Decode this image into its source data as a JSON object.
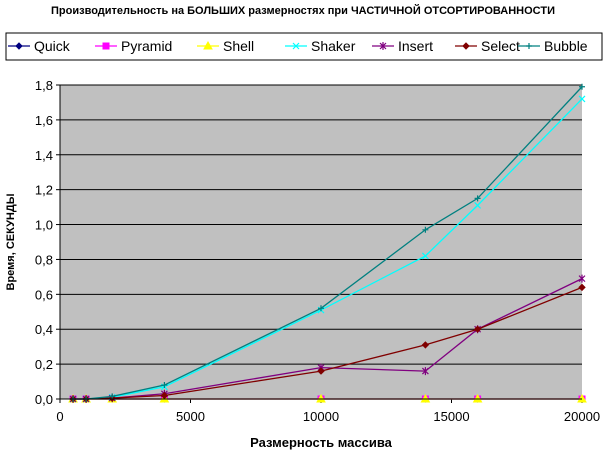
{
  "chart_data": {
    "type": "line",
    "title": "Производительность на БОЛЬШИХ размерностях при ЧАСТИЧНОЙ ОТСОРТИРОВАННОСТИ",
    "xlabel": "Размерность массива",
    "ylabel": "Время, СЕКУНДЫ",
    "xlim": [
      0,
      20000
    ],
    "ylim": [
      0,
      1.8
    ],
    "x_ticks": [
      0,
      5000,
      10000,
      15000,
      20000
    ],
    "x_tick_labels": [
      "0",
      "5000",
      "10000",
      "15000",
      "20000"
    ],
    "y_ticks": [
      0,
      0.2,
      0.4,
      0.6,
      0.8,
      1.0,
      1.2,
      1.4,
      1.6,
      1.8
    ],
    "y_tick_labels": [
      "0,0",
      "0,2",
      "0,4",
      "0,6",
      "0,8",
      "1,0",
      "1,2",
      "1,4",
      "1,6",
      "1,8"
    ],
    "grid": "horizontal",
    "plot_background": "#c0c0c0",
    "legend_position": "top",
    "x": [
      500,
      1000,
      2000,
      4000,
      10000,
      14000,
      16000,
      20000
    ],
    "series": [
      {
        "name": "Quick",
        "color": "#000080",
        "marker": "diamond",
        "values": [
          0,
          0,
          0,
          0,
          0,
          0,
          0,
          0
        ]
      },
      {
        "name": "Pyramid",
        "color": "#ff00ff",
        "marker": "square",
        "values": [
          0,
          0,
          0,
          0,
          0,
          0,
          0,
          0
        ]
      },
      {
        "name": "Shell",
        "color": "#ffff00",
        "marker": "triangle",
        "values": [
          0,
          0,
          0,
          0,
          0,
          0,
          0,
          0
        ]
      },
      {
        "name": "Shaker",
        "color": "#00ffff",
        "marker": "x",
        "values": [
          0,
          0,
          0.01,
          0.07,
          0.51,
          0.82,
          1.11,
          1.72
        ]
      },
      {
        "name": "Insert",
        "color": "#800080",
        "marker": "star",
        "values": [
          0,
          0,
          0.005,
          0.03,
          0.18,
          0.16,
          0.4,
          0.69
        ]
      },
      {
        "name": "Select",
        "color": "#800000",
        "marker": "diamond",
        "values": [
          0,
          0,
          0.005,
          0.02,
          0.16,
          0.31,
          0.4,
          0.64
        ]
      },
      {
        "name": "Bubble",
        "color": "#008080",
        "marker": "plus",
        "values": [
          0,
          0,
          0.015,
          0.08,
          0.52,
          0.97,
          1.15,
          1.79
        ]
      }
    ]
  }
}
